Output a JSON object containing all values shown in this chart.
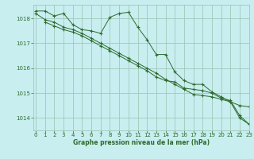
{
  "bg_color": "#c8eef0",
  "grid_color": "#a0c8b8",
  "line_color": "#2d6a2d",
  "title": "Graphe pression niveau de la mer (hPa)",
  "ylim": [
    1013.5,
    1018.55
  ],
  "xlim": [
    -0.3,
    23
  ],
  "yticks": [
    1014,
    1015,
    1016,
    1017,
    1018
  ],
  "xticks": [
    0,
    1,
    2,
    3,
    4,
    5,
    6,
    7,
    8,
    9,
    10,
    11,
    12,
    13,
    14,
    15,
    16,
    17,
    18,
    19,
    20,
    21,
    22,
    23
  ],
  "series": [
    {
      "x": [
        0,
        1,
        2,
        3,
        4,
        5,
        6,
        7,
        8,
        9,
        10,
        11,
        12,
        13,
        14,
        15,
        16,
        17,
        18,
        19,
        20,
        21,
        22,
        23
      ],
      "y": [
        1018.3,
        1018.3,
        1018.1,
        1018.2,
        1017.75,
        1017.55,
        1017.5,
        1017.4,
        1018.05,
        1018.2,
        1018.25,
        1017.65,
        1017.15,
        1016.55,
        1016.55,
        1015.85,
        1015.5,
        1015.35,
        1015.35,
        1015.05,
        1014.85,
        1014.65,
        1014.0,
        1013.75
      ]
    },
    {
      "x": [
        0,
        1,
        2,
        3,
        4,
        5,
        6,
        7,
        8,
        9,
        10,
        11,
        12,
        13,
        14,
        15,
        16,
        17,
        18,
        19,
        20,
        21,
        22,
        23
      ],
      "y": [
        1018.2,
        1017.95,
        1017.85,
        1017.65,
        1017.55,
        1017.4,
        1017.2,
        1017.0,
        1016.8,
        1016.6,
        1016.4,
        1016.2,
        1016.0,
        1015.8,
        1015.55,
        1015.35,
        1015.15,
        1014.95,
        1014.9,
        1014.85,
        1014.75,
        1014.65,
        1014.5,
        1014.45
      ]
    },
    {
      "x": [
        1,
        2,
        3,
        4,
        5,
        6,
        7,
        8,
        9,
        10,
        11,
        12,
        13,
        14,
        15,
        16,
        17,
        18,
        19,
        20,
        21,
        22,
        23
      ],
      "y": [
        1017.85,
        1017.7,
        1017.55,
        1017.45,
        1017.3,
        1017.1,
        1016.9,
        1016.7,
        1016.5,
        1016.3,
        1016.1,
        1015.9,
        1015.65,
        1015.5,
        1015.45,
        1015.2,
        1015.15,
        1015.1,
        1015.0,
        1014.8,
        1014.7,
        1014.1,
        1013.75
      ]
    }
  ]
}
